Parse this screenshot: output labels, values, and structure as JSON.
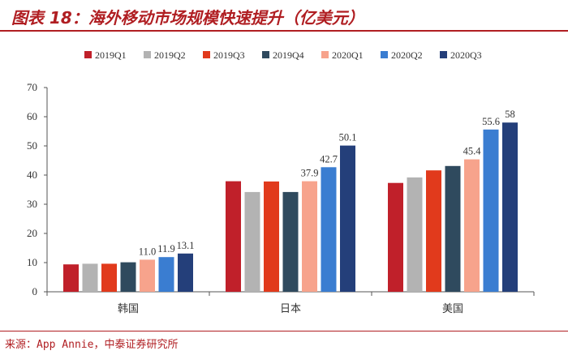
{
  "header": {
    "title": "图表 18：海外移动市场规模快速提升（亿美元）"
  },
  "footer": {
    "source": "来源：App Annie，中泰证券研究所"
  },
  "colors": {
    "title": "#b01e22",
    "series": [
      "#c0202a",
      "#b3b3b3",
      "#e13a1c",
      "#2f4a5e",
      "#f7a38c",
      "#3a7dd1",
      "#243f7a"
    ]
  },
  "chart_data": {
    "type": "bar",
    "title": "海外移动市场规模快速提升（亿美元）",
    "xlabel": "",
    "ylabel": "",
    "ylim": [
      0,
      70
    ],
    "yticks": [
      0,
      10,
      20,
      30,
      40,
      50,
      60,
      70
    ],
    "legend_position": "top",
    "categories": [
      "韩国",
      "日本",
      "美国"
    ],
    "series": [
      {
        "name": "2019Q1",
        "values": [
          9.4,
          37.9,
          37.3
        ]
      },
      {
        "name": "2019Q2",
        "values": [
          9.6,
          34.2,
          39.2
        ]
      },
      {
        "name": "2019Q3",
        "values": [
          9.6,
          37.8,
          41.6
        ]
      },
      {
        "name": "2019Q4",
        "values": [
          10.1,
          34.2,
          43.1
        ]
      },
      {
        "name": "2020Q1",
        "values": [
          11.0,
          37.9,
          45.4
        ]
      },
      {
        "name": "2020Q2",
        "values": [
          11.9,
          42.7,
          55.6
        ]
      },
      {
        "name": "2020Q3",
        "values": [
          13.1,
          50.1,
          58
        ]
      }
    ],
    "data_labels": [
      {
        "series": "2020Q1",
        "category": "韩国",
        "text": "11.0"
      },
      {
        "series": "2020Q2",
        "category": "韩国",
        "text": "11.9"
      },
      {
        "series": "2020Q3",
        "category": "韩国",
        "text": "13.1"
      },
      {
        "series": "2020Q1",
        "category": "日本",
        "text": "37.9"
      },
      {
        "series": "2020Q2",
        "category": "日本",
        "text": "42.7"
      },
      {
        "series": "2020Q3",
        "category": "日本",
        "text": "50.1"
      },
      {
        "series": "2020Q1",
        "category": "美国",
        "text": "45.4"
      },
      {
        "series": "2020Q2",
        "category": "美国",
        "text": "55.6"
      },
      {
        "series": "2020Q3",
        "category": "美国",
        "text": "58"
      }
    ]
  }
}
